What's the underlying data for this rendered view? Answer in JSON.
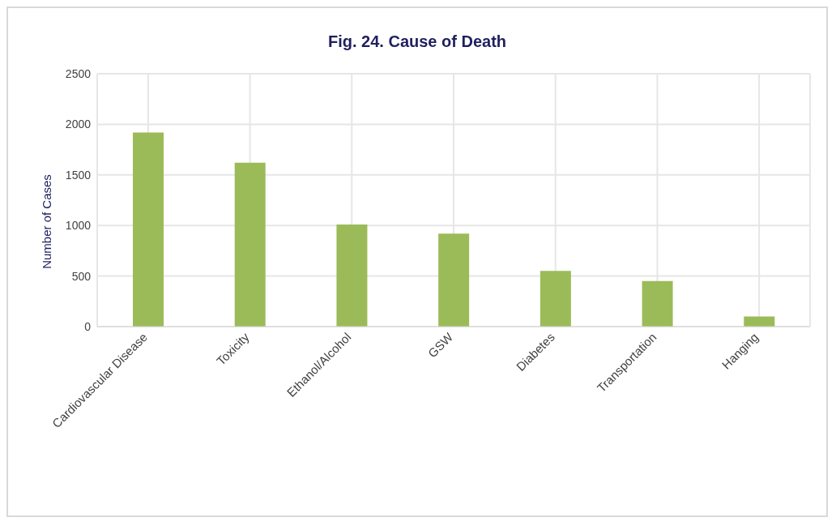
{
  "chart_data": {
    "type": "bar",
    "title": "Fig. 24. Cause of Death",
    "ylabel": "Number of Cases",
    "categories": [
      "Cardiovascular Disease",
      "Toxicity",
      "Ethanol/Alcohol",
      "GSW",
      "Diabetes",
      "Transportation",
      "Hanging"
    ],
    "values": [
      1920,
      1620,
      1010,
      920,
      550,
      450,
      100
    ],
    "color": "#9bbb59",
    "ylim": [
      0,
      2500
    ],
    "yticks": [
      0,
      500,
      1000,
      1500,
      2000,
      2500
    ],
    "grid": true
  }
}
